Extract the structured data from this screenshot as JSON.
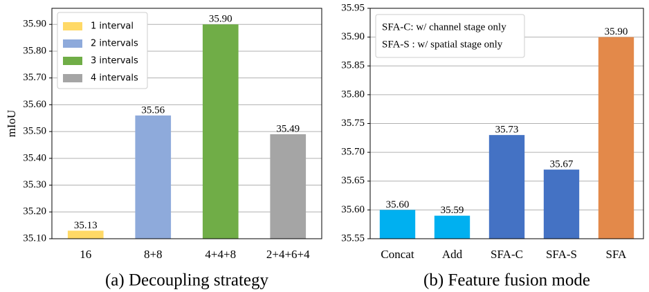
{
  "chart_data": [
    {
      "type": "bar",
      "title": "(a) Decoupling strategy",
      "y_label": "mIoU",
      "categories": [
        "16",
        "8+8",
        "4+4+8",
        "2+4+6+4"
      ],
      "values": [
        35.13,
        35.56,
        35.9,
        35.49
      ],
      "value_labels": [
        "35.13",
        "35.56",
        "35.90",
        "35.49"
      ],
      "colors": [
        "#ffd966",
        "#8eaadb",
        "#70ad47",
        "#a5a5a5"
      ],
      "legend": [
        "1 interval",
        "2 intervals",
        "3 intervals",
        "4 intervals"
      ],
      "ylim": [
        35.1,
        35.96
      ],
      "yticks": [
        {
          "value": 35.1,
          "label": "35.10"
        },
        {
          "value": 35.2,
          "label": "35.20"
        },
        {
          "value": 35.3,
          "label": "35.30"
        },
        {
          "value": 35.4,
          "label": "35.40"
        },
        {
          "value": 35.5,
          "label": "35.50"
        },
        {
          "value": 35.6,
          "label": "35.60"
        },
        {
          "value": 35.7,
          "label": "35.70"
        },
        {
          "value": 35.8,
          "label": "35.80"
        },
        {
          "value": 35.9,
          "label": "35.90"
        }
      ],
      "grid": true
    },
    {
      "type": "bar",
      "title": "(b) Feature fusion mode",
      "categories": [
        "Concat",
        "Add",
        "SFA-C",
        "SFA-S",
        "SFA"
      ],
      "values": [
        35.6,
        35.59,
        35.73,
        35.67,
        35.9
      ],
      "value_labels": [
        "35.60",
        "35.59",
        "35.73",
        "35.67",
        "35.90"
      ],
      "colors": [
        "#00b0f0",
        "#00b0f0",
        "#4472c4",
        "#4472c4",
        "#e3894a"
      ],
      "annotations": [
        "SFA-C: w/ channel stage only",
        "SFA-S : w/ spatial stage only"
      ],
      "ylim": [
        35.55,
        35.95
      ],
      "yticks": [
        {
          "value": 35.55,
          "label": "35.55"
        },
        {
          "value": 35.6,
          "label": "35.60"
        },
        {
          "value": 35.65,
          "label": "35.65"
        },
        {
          "value": 35.7,
          "label": "35.70"
        },
        {
          "value": 35.75,
          "label": "35.75"
        },
        {
          "value": 35.8,
          "label": "35.80"
        },
        {
          "value": 35.85,
          "label": "35.85"
        },
        {
          "value": 35.9,
          "label": "35.90"
        },
        {
          "value": 35.95,
          "label": "35.95"
        }
      ],
      "grid": true
    }
  ]
}
